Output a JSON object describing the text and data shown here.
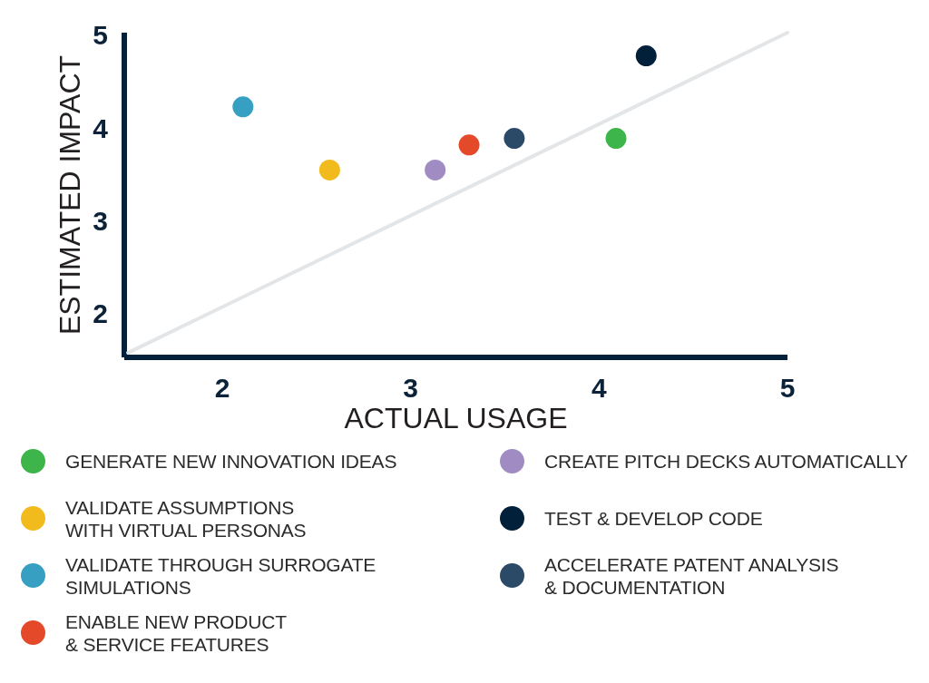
{
  "chart_data": {
    "type": "scatter",
    "xlabel": "ACTUAL USAGE",
    "ylabel": "ESTIMATED IMPACT",
    "xlim": [
      1.48,
      5
    ],
    "ylim": [
      1.55,
      5.05
    ],
    "xticks": [
      2,
      3,
      4,
      5
    ],
    "yticks": [
      2,
      3,
      4,
      5
    ],
    "legend": "bottom",
    "marker": "circle",
    "series": [
      {
        "name": "GENERATE NEW INNOVATION IDEAS",
        "color": "#3db54a",
        "x": [
          4.09
        ],
        "values": [
          3.91
        ]
      },
      {
        "name": "VALIDATE ASSUMPTIONS\nWITH VIRTUAL PERSONAS",
        "color": "#f2bb1d",
        "x": [
          2.57
        ],
        "values": [
          3.57
        ]
      },
      {
        "name": "VALIDATE THROUGH SURROGATE\nSIMULATIONS",
        "color": "#37a0c2",
        "x": [
          2.11
        ],
        "values": [
          4.25
        ]
      },
      {
        "name": "ENABLE NEW PRODUCT\n& SERVICE FEATURES",
        "color": "#e4492a",
        "x": [
          3.31
        ],
        "values": [
          3.84
        ]
      },
      {
        "name": "CREATE PITCH DECKS AUTOMATICALLY",
        "color": "#a08cc2",
        "x": [
          3.13
        ],
        "values": [
          3.57
        ]
      },
      {
        "name": "TEST & DEVELOP CODE",
        "color": "#02203a",
        "x": [
          4.25
        ],
        "values": [
          4.8
        ]
      },
      {
        "name": "ACCELERATE PATENT ANALYSIS\n& DOCUMENTATION",
        "color": "#2b4a68",
        "x": [
          3.55
        ],
        "values": [
          3.91
        ]
      },
      {
        "type": "line",
        "color": "#e3e6e8",
        "marker": "none",
        "x": [
          1.5,
          5
        ],
        "values": [
          1.6,
          5.05
        ]
      }
    ]
  }
}
